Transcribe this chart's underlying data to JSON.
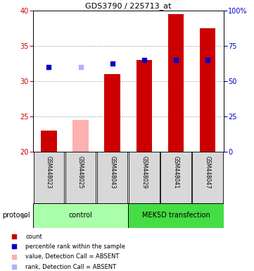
{
  "title": "GDS3790 / 225713_at",
  "samples": [
    "GSM448023",
    "GSM448025",
    "GSM448043",
    "GSM448029",
    "GSM448041",
    "GSM448047"
  ],
  "count_values": [
    23.0,
    null,
    31.0,
    33.0,
    39.5,
    37.5
  ],
  "count_absent_values": [
    null,
    24.5,
    null,
    null,
    null,
    null
  ],
  "percentile_values": [
    32.0,
    null,
    32.5,
    33.0,
    33.0,
    33.0
  ],
  "percentile_absent_values": [
    null,
    32.0,
    null,
    null,
    null,
    null
  ],
  "ylim_left": [
    20,
    40
  ],
  "ylim_right": [
    0,
    100
  ],
  "bar_bottom": 20,
  "left_ticks": [
    20,
    25,
    30,
    35,
    40
  ],
  "right_ticks": [
    0,
    25,
    50,
    75,
    100
  ],
  "right_tick_labels": [
    "0",
    "25",
    "50",
    "75",
    "100%"
  ],
  "dot_size": 18,
  "bar_width": 0.5,
  "count_color": "#cc0000",
  "count_absent_color": "#ffb0b0",
  "percentile_color": "#0000cc",
  "percentile_absent_color": "#b0b0ff",
  "grid_color": "#888888",
  "control_color": "#aaffaa",
  "mek_color": "#44dd44",
  "legend_items": [
    {
      "label": "count",
      "color": "#cc0000"
    },
    {
      "label": "percentile rank within the sample",
      "color": "#0000cc"
    },
    {
      "label": "value, Detection Call = ABSENT",
      "color": "#ffb0b0"
    },
    {
      "label": "rank, Detection Call = ABSENT",
      "color": "#b0b0ff"
    }
  ],
  "protocol_label": "protocol",
  "left_axis_color": "#cc0000",
  "right_axis_color": "#0000cc",
  "title_fontsize": 8,
  "tick_labelsize": 7,
  "legend_fontsize": 6,
  "sample_fontsize": 5.5,
  "protocol_fontsize": 7
}
